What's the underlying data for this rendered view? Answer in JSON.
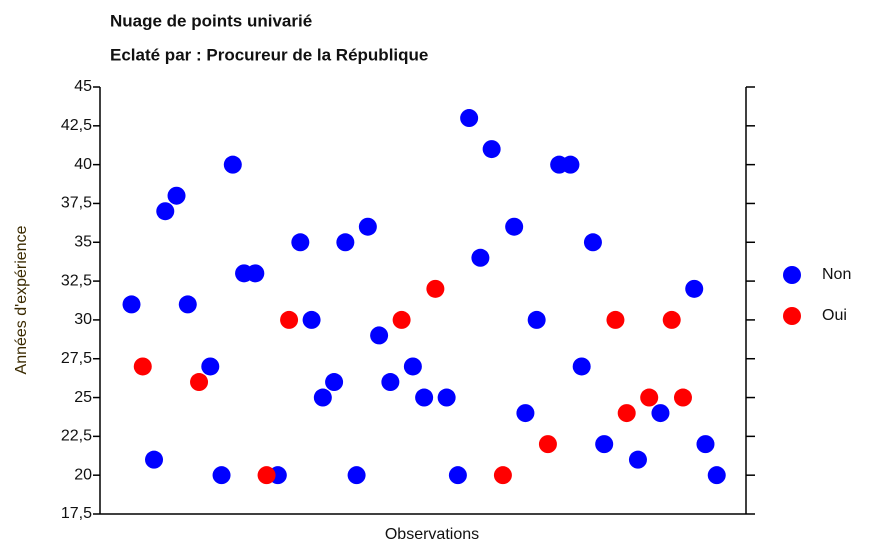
{
  "chart_data": {
    "type": "scatter",
    "title": "Nuage de points univarié",
    "subtitle": "Eclaté par : Procureur de la République",
    "xlabel": "Observations",
    "ylabel": "Années d'expérience",
    "xlim": [
      -1.8,
      55.6
    ],
    "ylim": [
      17.5,
      45
    ],
    "yticks": [
      {
        "value": 17.5,
        "label": "17,5"
      },
      20,
      {
        "value": 22.5,
        "label": "22,5"
      },
      25,
      {
        "value": 27.5,
        "label": "27,5"
      },
      30,
      {
        "value": 32.5,
        "label": "32,5"
      },
      35,
      {
        "value": 37.5,
        "label": "37,5"
      },
      40,
      {
        "value": 42.5,
        "label": "42,5"
      },
      45
    ],
    "legend": "right",
    "series": [
      {
        "name": "Non",
        "color": "#0000ff",
        "x": [
          1,
          3,
          4,
          5,
          6,
          8,
          9,
          10,
          11,
          12,
          14,
          16,
          17,
          18,
          19,
          20,
          21,
          22,
          23,
          24,
          26,
          27,
          29,
          30,
          31,
          32,
          33,
          35,
          36,
          37,
          39,
          40,
          41,
          42,
          43,
          46,
          48,
          51,
          52,
          53
        ],
        "values": [
          31,
          21,
          37,
          38,
          31,
          27,
          20,
          40,
          33,
          33,
          20,
          35,
          30,
          25,
          26,
          35,
          20,
          36,
          29,
          26,
          27,
          25,
          25,
          20,
          43,
          34,
          41,
          36,
          24,
          30,
          40,
          40,
          27,
          35,
          22,
          21,
          24,
          32,
          22,
          20
        ]
      },
      {
        "name": "Oui",
        "color": "#ff0000",
        "x": [
          2,
          7,
          13,
          15,
          25,
          28,
          34,
          38,
          44,
          45,
          47,
          49,
          50
        ],
        "values": [
          27,
          26,
          20,
          30,
          30,
          32,
          20,
          22,
          30,
          24,
          25,
          30,
          25
        ]
      }
    ]
  }
}
